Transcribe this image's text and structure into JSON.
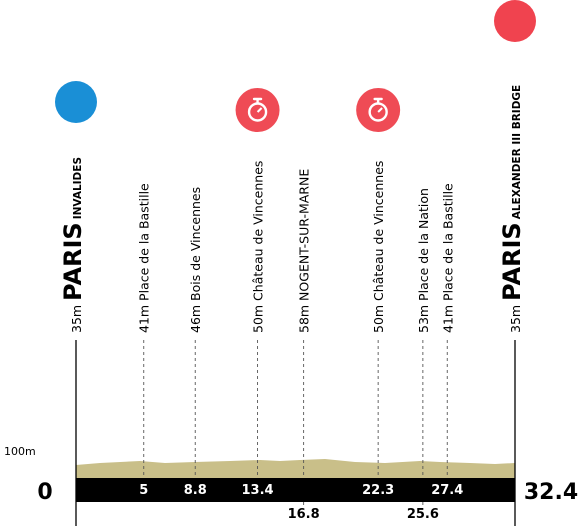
{
  "title": "",
  "y_axis": {
    "label": "100m"
  },
  "distance": {
    "start_label": "0",
    "end_label": "32.4"
  },
  "colors": {
    "start_dot": "#1a8fd6",
    "finish_dot": "#f0434f",
    "sprint_dot": "#ef4b55",
    "terrain": "#c9bf89",
    "base_band": "#000000",
    "line": "#000000"
  },
  "start": {
    "city": "PARIS",
    "place": "INVALIDES",
    "altitude": "35m",
    "dot_icon": "blue-circle"
  },
  "finish": {
    "city": "PARIS",
    "place": "ALEXANDER III BRIDGE",
    "altitude": "35m",
    "dot_icon": "red-circle"
  },
  "waypoints": [
    {
      "km": 5,
      "km_label": "5",
      "altitude": "41m",
      "name": "Place de la Bastille",
      "km_row": "top",
      "sprint": false
    },
    {
      "km": 8.8,
      "km_label": "8.8",
      "altitude": "46m",
      "name": "Bois de Vincennes",
      "km_row": "top",
      "sprint": false
    },
    {
      "km": 13.4,
      "km_label": "13.4",
      "altitude": "50m",
      "name": "Château de Vincennes",
      "km_row": "top",
      "sprint": true,
      "sprint_icon": "stopwatch-icon"
    },
    {
      "km": 16.8,
      "km_label": "16.8",
      "altitude": "58m",
      "name": "NOGENT-SUR-MARNE",
      "km_row": "bottom",
      "sprint": false
    },
    {
      "km": 22.3,
      "km_label": "22.3",
      "altitude": "50m",
      "name": "Château de Vincennes",
      "km_row": "top",
      "sprint": true,
      "sprint_icon": "stopwatch-icon"
    },
    {
      "km": 25.6,
      "km_label": "25.6",
      "altitude": "53m",
      "name": "Place de la Nation",
      "km_row": "bottom",
      "sprint": false
    },
    {
      "km": 27.4,
      "km_label": "27.4",
      "altitude": "41m",
      "name": "Place de la Bastille",
      "km_row": "top",
      "sprint": false
    }
  ]
}
